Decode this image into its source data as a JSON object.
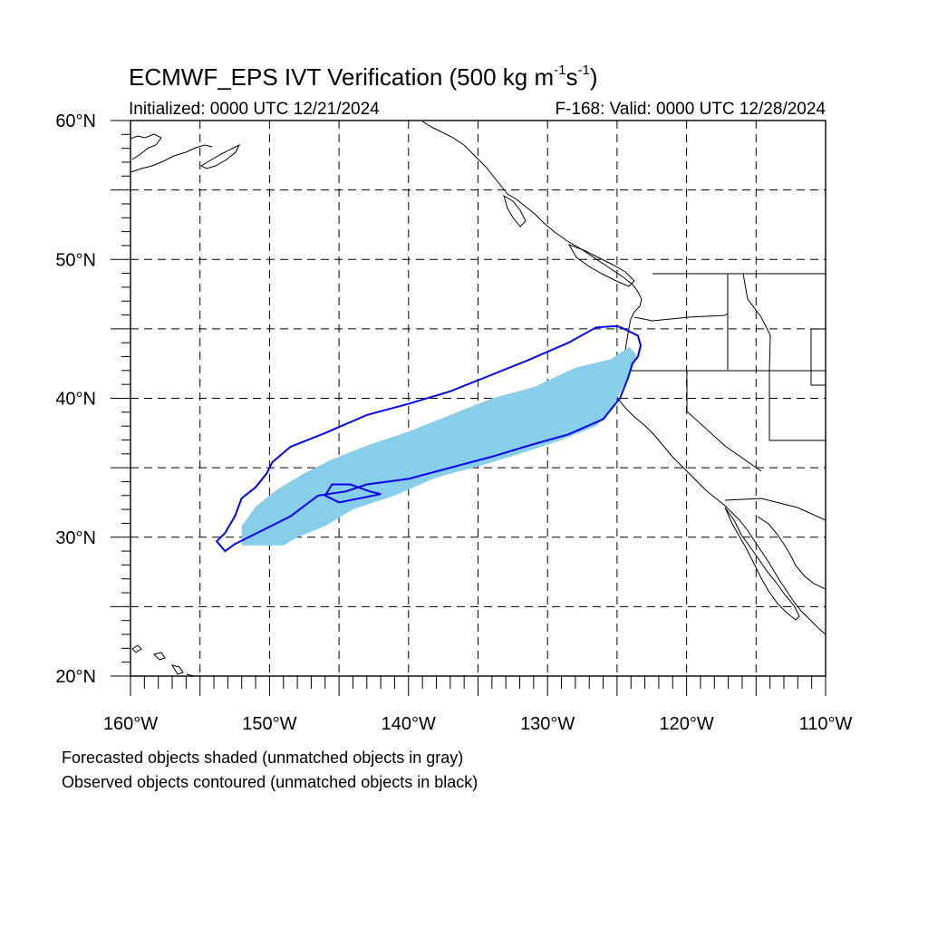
{
  "header": {
    "title_main": "ECMWF_EPS IVT Verification (500 kg m",
    "title_exp1": "-1",
    "title_mid": "s",
    "title_exp2": "-1",
    "title_end": ")",
    "initialized": "Initialized: 0000 UTC 12/21/2024",
    "valid": "F-168: Valid: 0000 UTC 12/28/2024"
  },
  "footnotes": {
    "forecast": "Forecasted objects shaded (unmatched objects in gray)",
    "observed": "Observed objects contoured (unmatched objects in black)"
  },
  "colors": {
    "forecast_fill": "#87ceeb",
    "observed_contour": "#0000ff",
    "grid": "#000000",
    "coast": "#000000"
  },
  "map": {
    "projection": "cylindrical-equidistant",
    "lon_range": [
      -160,
      -110
    ],
    "lat_range": [
      20,
      60
    ],
    "grid_style": "dashed",
    "grid_step_lon": 5,
    "grid_step_lat": 5,
    "lat_labels": [
      "60°N",
      "50°N",
      "40°N",
      "30°N",
      "20°N"
    ],
    "lat_label_values": [
      60,
      50,
      40,
      30,
      20
    ],
    "lon_labels": [
      "160°W",
      "150°W",
      "140°W",
      "130°W",
      "120°W",
      "110°W"
    ],
    "lon_label_values": [
      -160,
      -150,
      -140,
      -130,
      -120,
      -110
    ]
  },
  "forecast_object": {
    "status": "matched",
    "outline_lonlat": [
      [
        -152.0,
        29.4
      ],
      [
        -149.0,
        29.4
      ],
      [
        -148.0,
        30.0
      ],
      [
        -146.0,
        30.8
      ],
      [
        -144.0,
        32.0
      ],
      [
        -141.0,
        33.0
      ],
      [
        -138.0,
        34.3
      ],
      [
        -135.0,
        35.1
      ],
      [
        -132.0,
        36.0
      ],
      [
        -129.0,
        37.0
      ],
      [
        -126.5,
        38.0
      ],
      [
        -125.5,
        39.0
      ],
      [
        -124.5,
        41.0
      ],
      [
        -123.8,
        42.5
      ],
      [
        -123.6,
        43.1
      ],
      [
        -124.1,
        43.7
      ],
      [
        -125.5,
        42.8
      ],
      [
        -128.0,
        42.2
      ],
      [
        -131.0,
        40.8
      ],
      [
        -134.0,
        40.0
      ],
      [
        -137.0,
        38.8
      ],
      [
        -140.0,
        37.6
      ],
      [
        -143.0,
        36.6
      ],
      [
        -145.5,
        35.6
      ],
      [
        -147.5,
        34.6
      ],
      [
        -149.5,
        33.4
      ],
      [
        -151.0,
        32.2
      ],
      [
        -152.0,
        30.8
      ]
    ]
  },
  "observed_objects": [
    {
      "status": "matched",
      "outline_lonlat": [
        [
          -153.8,
          29.7
        ],
        [
          -153.2,
          29.0
        ],
        [
          -152.5,
          29.5
        ],
        [
          -150.5,
          30.5
        ],
        [
          -148.5,
          31.5
        ],
        [
          -146.5,
          33.0
        ],
        [
          -144.5,
          33.3
        ],
        [
          -143.0,
          33.8
        ],
        [
          -140.0,
          34.2
        ],
        [
          -137.0,
          35.0
        ],
        [
          -134.0,
          35.8
        ],
        [
          -131.0,
          36.7
        ],
        [
          -128.5,
          37.4
        ],
        [
          -126.0,
          38.5
        ],
        [
          -124.8,
          40.0
        ],
        [
          -124.2,
          41.5
        ],
        [
          -123.9,
          42.5
        ],
        [
          -123.5,
          43.0
        ],
        [
          -123.3,
          43.8
        ],
        [
          -123.5,
          44.5
        ],
        [
          -124.5,
          45.0
        ],
        [
          -125.0,
          45.2
        ],
        [
          -126.5,
          45.1
        ],
        [
          -128.5,
          44.0
        ],
        [
          -131.5,
          42.7
        ],
        [
          -134.5,
          41.5
        ],
        [
          -137.0,
          40.5
        ],
        [
          -140.0,
          39.6
        ],
        [
          -143.0,
          38.8
        ],
        [
          -146.0,
          37.5
        ],
        [
          -148.5,
          36.5
        ],
        [
          -149.8,
          35.4
        ],
        [
          -150.2,
          34.6
        ],
        [
          -151.0,
          33.6
        ],
        [
          -152.0,
          32.8
        ],
        [
          -152.5,
          31.5
        ],
        [
          -153.2,
          30.3
        ]
      ]
    },
    {
      "status": "matched",
      "outline_lonlat": [
        [
          -144.2,
          33.8
        ],
        [
          -145.5,
          33.8
        ],
        [
          -146.0,
          33.0
        ],
        [
          -145.0,
          32.5
        ],
        [
          -143.5,
          32.8
        ],
        [
          -142.0,
          33.1
        ],
        [
          -142.8,
          33.3
        ]
      ]
    }
  ]
}
